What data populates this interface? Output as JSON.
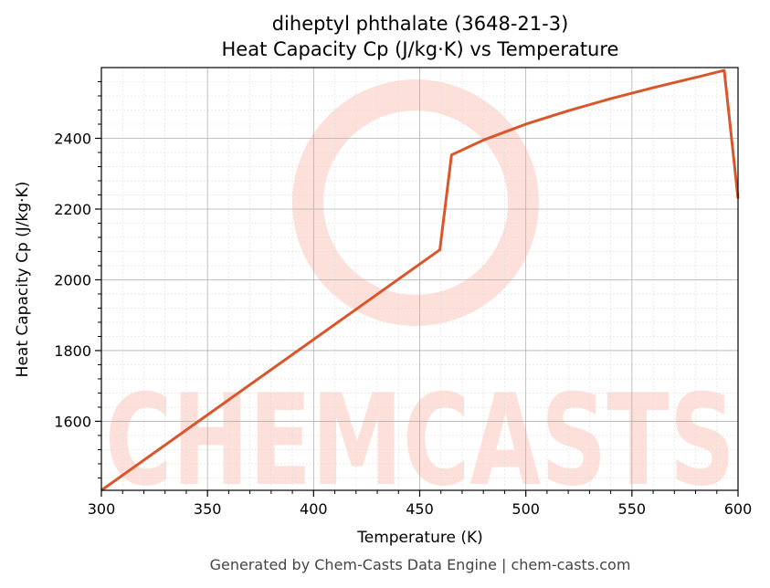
{
  "chart_data": {
    "type": "line",
    "title": "diheptyl phthalate (3648-21-3)",
    "subtitle": "Heat Capacity Cp (J/kg·K) vs Temperature",
    "xlabel": "Temperature (K)",
    "ylabel": "Heat Capacity Cp (J/kg·K)",
    "xlim": [
      300,
      600
    ],
    "ylim": [
      1405,
      2600
    ],
    "xticks": [
      300,
      350,
      400,
      450,
      500,
      550,
      600
    ],
    "yticks": [
      1600,
      1800,
      2000,
      2200,
      2400
    ],
    "grid": true,
    "series": [
      {
        "color": "#d9562a",
        "x": [
          300,
          459.5,
          465,
          480,
          500,
          520,
          540,
          560,
          580,
          593.5,
          600
        ],
        "y": [
          1405,
          2085,
          2353,
          2395,
          2440,
          2478,
          2512,
          2543,
          2572,
          2592,
          2230
        ]
      }
    ]
  },
  "watermark": {
    "text": "CHEMCASTS",
    "color": "#fde0da"
  },
  "footer": "Generated by Chem-Casts Data Engine | chem-casts.com"
}
